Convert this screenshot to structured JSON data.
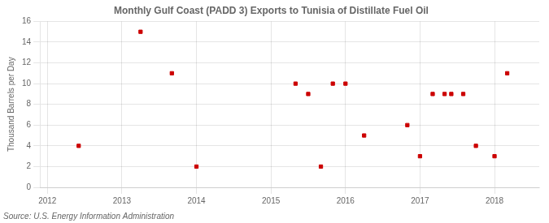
{
  "chart_data": {
    "type": "scatter",
    "title": "Monthly Gulf Coast (PADD 3) Exports to Tunisia of Distillate Fuel Oil",
    "ylabel": "Thousand Barrels per Day",
    "annotation": "Source: U.S. Energy Information Administration",
    "x": [
      2012.42,
      2013.25,
      2013.67,
      2014.0,
      2015.33,
      2015.5,
      2015.67,
      2015.83,
      2016.0,
      2016.25,
      2016.83,
      2017.0,
      2017.17,
      2017.33,
      2017.42,
      2017.58,
      2017.75,
      2018.0,
      2018.17
    ],
    "values": [
      4,
      15,
      11,
      2,
      10,
      9,
      2,
      10,
      10,
      5,
      6,
      3,
      9,
      9,
      9,
      9,
      4,
      3,
      11
    ],
    "color": "#cc0000",
    "marker": "square",
    "xlim": [
      2011.9,
      2018.6
    ],
    "xticks": [
      2012,
      2013,
      2014,
      2015,
      2016,
      2017,
      2018
    ],
    "ylim": [
      0,
      16
    ],
    "yticks": [
      0,
      2,
      4,
      6,
      8,
      10,
      12,
      14,
      16
    ],
    "grid": true
  }
}
